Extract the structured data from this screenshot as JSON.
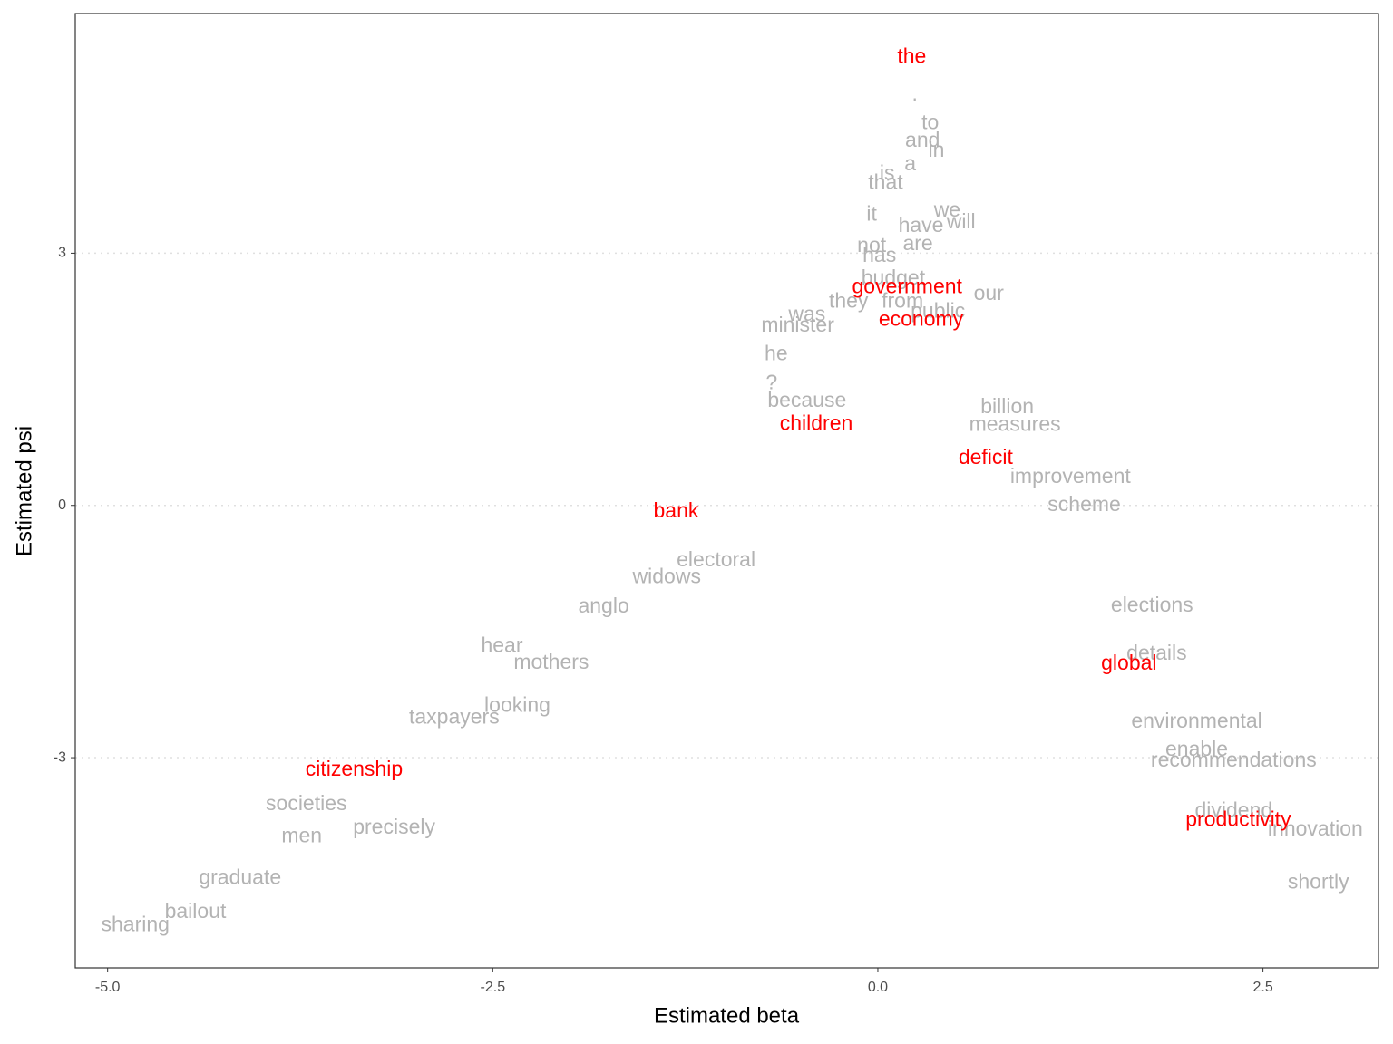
{
  "chart_data": {
    "type": "text-scatter",
    "xlabel": "Estimated beta",
    "ylabel": "Estimated psi",
    "xlim": [
      -5.21,
      3.25
    ],
    "ylim": [
      -5.5,
      5.85
    ],
    "xticks": [
      {
        "value": -5,
        "label": "-5.0"
      },
      {
        "value": -2.5,
        "label": "-2.5"
      },
      {
        "value": 0,
        "label": "0.0"
      },
      {
        "value": 2.5,
        "label": "2.5"
      }
    ],
    "yticks": [
      -3,
      0,
      3
    ],
    "grid": true,
    "series": [
      {
        "color": "#b3b3b3",
        "words": [
          ".",
          "to",
          "and",
          "in",
          "a",
          "is",
          "that",
          "it",
          "we",
          "have",
          "will",
          "not",
          "are",
          "has",
          "our",
          "budget",
          "they",
          "from",
          "public",
          "was",
          "minister",
          "he",
          "?",
          "because",
          "billion",
          "measures",
          "improvement",
          "scheme",
          "widows",
          "anglo",
          "hear",
          "elections",
          "details",
          "taxpayers",
          "looking",
          "environmental",
          "enable",
          "recommendations",
          "societies",
          "men",
          "precisely",
          "graduate",
          "bailout",
          "sharing",
          "dividend",
          "innovation",
          "shortly",
          "electoral",
          "mothers"
        ],
        "x": [
          0.24,
          0.34,
          0.29,
          0.38,
          0.21,
          0.06,
          0.05,
          -0.04,
          0.45,
          0.28,
          0.54,
          -0.04,
          0.26,
          0.01,
          0.72,
          0.1,
          -0.19,
          0.16,
          0.39,
          -0.46,
          -0.52,
          -0.66,
          -0.69,
          -0.46,
          0.84,
          0.89,
          1.25,
          1.34,
          -1.37,
          -1.78,
          -2.44,
          1.78,
          1.81,
          -2.75,
          -2.34,
          2.07,
          2.07,
          2.31,
          -3.71,
          -3.74,
          -3.14,
          -4.14,
          -4.43,
          -4.82,
          2.31,
          2.84,
          2.86,
          -1.05,
          -2.12
        ],
        "values": [
          4.88,
          4.54,
          4.33,
          4.21,
          4.05,
          3.94,
          3.83,
          3.45,
          3.5,
          3.32,
          3.36,
          3.08,
          3.1,
          2.96,
          2.51,
          2.69,
          2.42,
          2.42,
          2.3,
          2.26,
          2.13,
          1.79,
          1.45,
          1.24,
          1.16,
          0.95,
          0.33,
          0,
          -0.86,
          -1.21,
          -1.68,
          -1.2,
          -1.77,
          -2.53,
          -2.39,
          -2.58,
          -2.91,
          -3.04,
          -3.56,
          -3.94,
          -3.84,
          -4.44,
          -4.84,
          -5.0,
          -3.64,
          -3.86,
          -4.49,
          -0.66,
          -1.88
        ]
      },
      {
        "color": "#ff0000",
        "words": [
          "the",
          "government",
          "economy",
          "children",
          "deficit",
          "bank",
          "global",
          "citizenship",
          "productivity"
        ],
        "x": [
          0.22,
          0.19,
          0.28,
          -0.4,
          0.7,
          -1.31,
          1.63,
          -3.4,
          2.34
        ],
        "values": [
          5.33,
          2.59,
          2.2,
          0.96,
          0.56,
          -0.08,
          -1.89,
          -3.15,
          -3.75
        ]
      }
    ]
  }
}
